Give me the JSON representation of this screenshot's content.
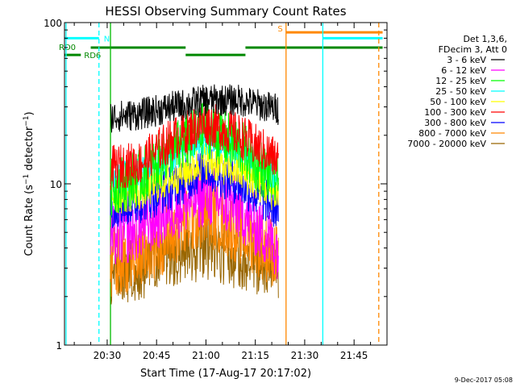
{
  "chart_data": {
    "type": "line",
    "title": "HESSI Observing Summary Count Rates",
    "xlabel": "Start Time (17-Aug-17 20:17:02)",
    "ylabel": "Count Rate (s⁻¹ detector⁻¹)",
    "y_scale": "log",
    "ylim": [
      1,
      100
    ],
    "xlim": [
      "20:17:02",
      "21:55:00"
    ],
    "x_ticks": [
      "20:30",
      "20:45",
      "21:00",
      "21:15",
      "21:30",
      "21:45"
    ],
    "y_ticks": [
      "1",
      "10",
      "100"
    ],
    "grid": false,
    "legend_position": "right",
    "legend_header": [
      "Det 1,3,6,",
      "FDecim 3, Att 0"
    ],
    "series": [
      {
        "name": "3 - 6 keV",
        "color": "#000000",
        "x": [
          "20:31",
          "20:40",
          "20:50",
          "21:00",
          "21:10",
          "21:22"
        ],
        "values": [
          26,
          27,
          30,
          33,
          33,
          29
        ]
      },
      {
        "name": "6 - 12 keV",
        "color": "#ff00ff",
        "x": [
          "20:31",
          "20:40",
          "20:50",
          "21:00",
          "21:10",
          "21:22"
        ],
        "values": [
          4.6,
          5.3,
          7.0,
          8.6,
          7.0,
          4.0
        ]
      },
      {
        "name": "12 - 25 keV",
        "color": "#00ff00",
        "x": [
          "20:31",
          "20:40",
          "20:50",
          "21:00",
          "21:10",
          "21:22"
        ],
        "values": [
          9.5,
          11.0,
          16,
          22,
          17,
          10
        ]
      },
      {
        "name": "25 - 50 keV",
        "color": "#00ffff",
        "x": [
          "20:31",
          "20:40",
          "20:50",
          "21:00",
          "21:10",
          "21:22"
        ],
        "values": [
          10.5,
          11.5,
          15,
          19,
          16,
          11
        ]
      },
      {
        "name": "50 - 100 keV",
        "color": "#ffff00",
        "x": [
          "20:31",
          "20:40",
          "20:50",
          "21:00",
          "21:10",
          "21:22"
        ],
        "values": [
          8.3,
          9.0,
          11.0,
          14,
          12,
          8.5
        ]
      },
      {
        "name": "100 - 300 keV",
        "color": "#ff0000",
        "x": [
          "20:31",
          "20:40",
          "20:50",
          "21:00",
          "21:10",
          "21:22"
        ],
        "values": [
          12.5,
          13.5,
          19,
          24,
          20,
          14
        ]
      },
      {
        "name": "300 - 800 keV",
        "color": "#0000ff",
        "x": [
          "20:31",
          "20:40",
          "20:50",
          "21:00",
          "21:10",
          "21:22"
        ],
        "values": [
          7.2,
          7.8,
          9.5,
          12.5,
          10,
          7.0
        ]
      },
      {
        "name": "800 - 7000 keV",
        "color": "#ff8800",
        "x": [
          "20:31",
          "20:40",
          "20:50",
          "21:00",
          "21:10",
          "21:22"
        ],
        "values": [
          3.2,
          3.6,
          5.0,
          6.8,
          5.2,
          3.6
        ]
      },
      {
        "name": "7000 - 20000 keV",
        "color": "#996600",
        "x": [
          "20:31",
          "20:40",
          "20:50",
          "21:00",
          "21:10",
          "21:22"
        ],
        "values": [
          2.8,
          3.0,
          3.6,
          4.0,
          3.5,
          3.0
        ]
      }
    ],
    "flags": [
      {
        "label": "N",
        "color": "#00ffff",
        "type": "night",
        "intervals": [
          [
            "20:17:02",
            "20:27:30"
          ],
          [
            "21:35:30",
            "21:53:40"
          ]
        ],
        "level": 80
      },
      {
        "label": "S",
        "color": "#ff8800",
        "type": "saa",
        "intervals": [
          [
            "21:24:20",
            "21:53:40"
          ]
        ],
        "level": 87
      },
      {
        "label": "RD0",
        "color": "#008800",
        "type": "decimation",
        "intervals": [
          [
            "20:25:00",
            "20:53:50"
          ],
          [
            "21:12:00",
            "21:53:40"
          ]
        ],
        "level": 70
      },
      {
        "label": "RD6",
        "color": "#008800",
        "type": "decimation",
        "intervals": [
          [
            "20:17:02",
            "20:22:00"
          ],
          [
            "20:53:50",
            "21:12:00"
          ]
        ],
        "level": 63
      }
    ],
    "vertical_lines": [
      {
        "time": "20:17:30",
        "color": "#00ffff",
        "style": "solid"
      },
      {
        "time": "20:27:30",
        "color": "#00ffff",
        "style": "dashed"
      },
      {
        "time": "20:31:00",
        "color": "#00bb00",
        "style": "solid"
      },
      {
        "time": "21:24:20",
        "color": "#ff8800",
        "style": "solid"
      },
      {
        "time": "21:35:30",
        "color": "#00ffff",
        "style": "solid"
      },
      {
        "time": "21:52:30",
        "color": "#ff8800",
        "style": "dashed"
      }
    ]
  },
  "footer": {
    "timestamp": "9-Dec-2017 05:08"
  }
}
